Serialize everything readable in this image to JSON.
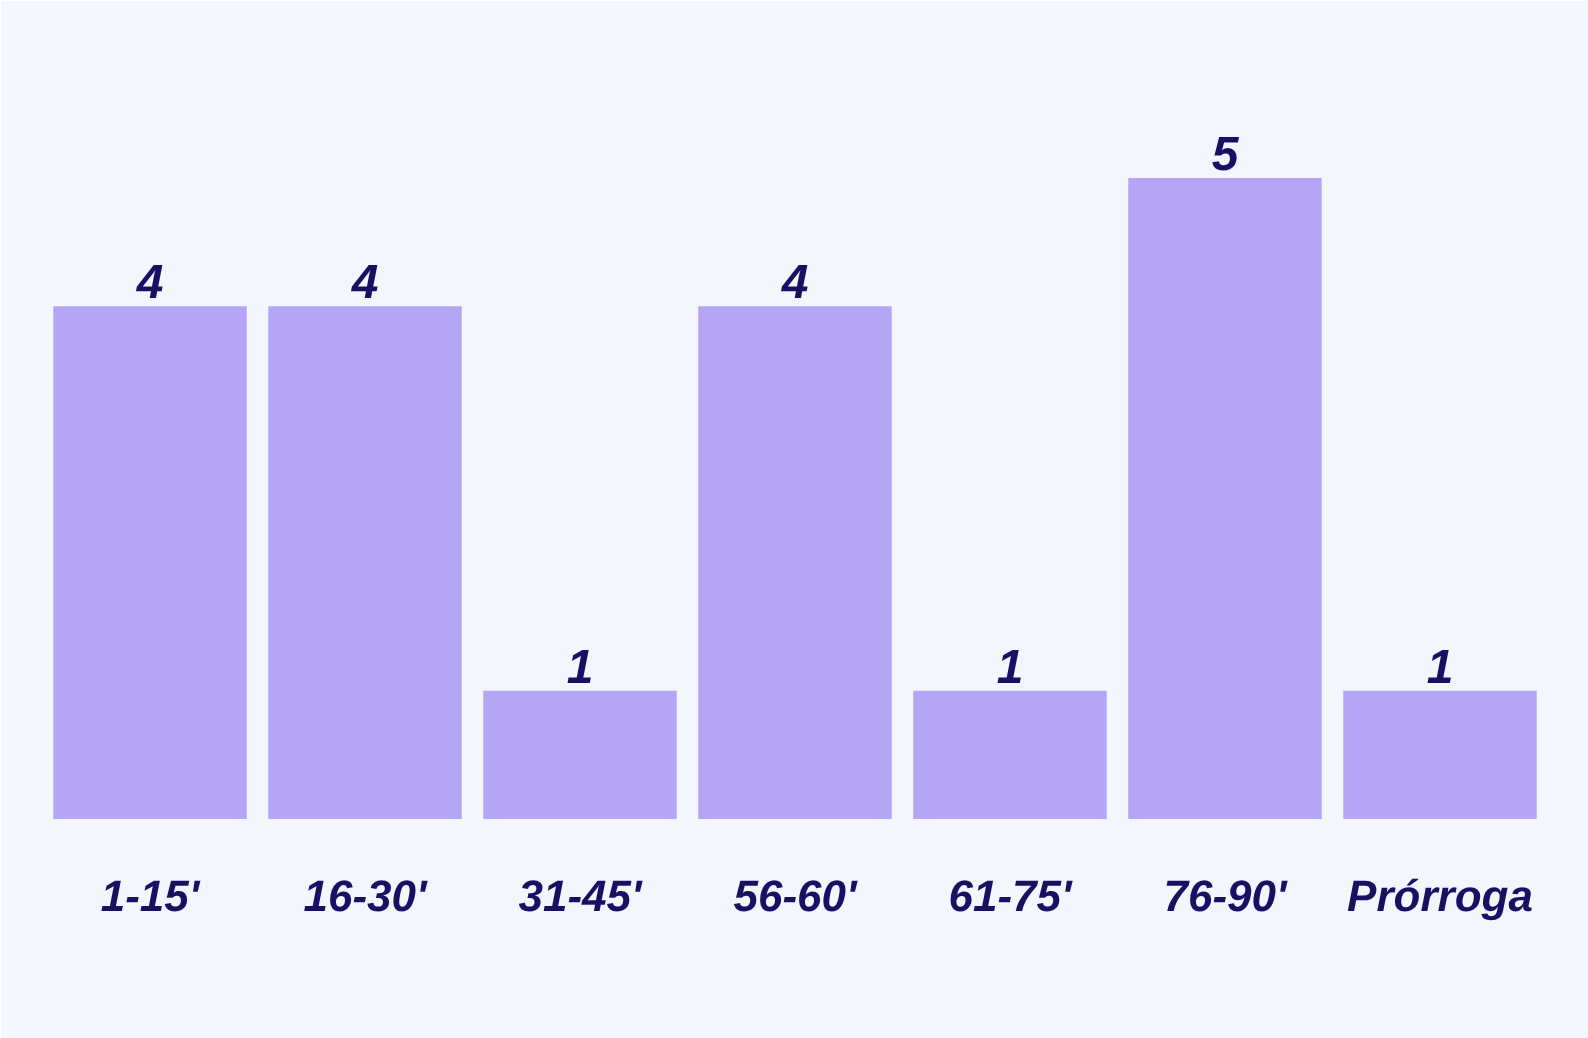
{
  "chart_data": {
    "type": "bar",
    "categories": [
      "1-15'",
      "16-30'",
      "31-45'",
      "56-60'",
      "61-75'",
      "76-90'",
      "Prórroga"
    ],
    "values": [
      4,
      4,
      1,
      4,
      1,
      5,
      1
    ],
    "color": "#b5a6f5",
    "data_labels": true
  }
}
